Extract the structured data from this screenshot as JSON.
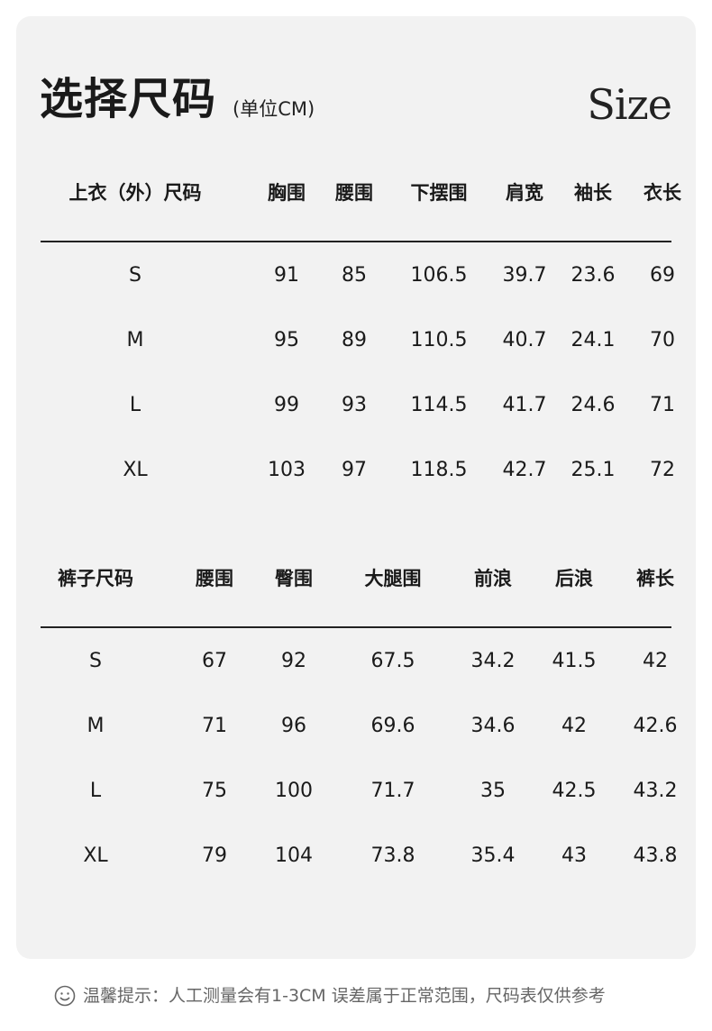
{
  "header": {
    "title": "选择尺码",
    "unit": "(单位CM)",
    "logo_text": "Size"
  },
  "top_table": {
    "headers": [
      "上衣（外）尺码",
      "胸围",
      "腰围",
      "下摆围",
      "肩宽",
      "袖长",
      "衣长"
    ],
    "rows": [
      [
        "S",
        "91",
        "85",
        "106.5",
        "39.7",
        "23.6",
        "69"
      ],
      [
        "M",
        "95",
        "89",
        "110.5",
        "40.7",
        "24.1",
        "70"
      ],
      [
        "L",
        "99",
        "93",
        "114.5",
        "41.7",
        "24.6",
        "71"
      ],
      [
        "XL",
        "103",
        "97",
        "118.5",
        "42.7",
        "25.1",
        "72"
      ]
    ]
  },
  "pants_table": {
    "headers": [
      "裤子尺码",
      "腰围",
      "臀围",
      "大腿围",
      "前浪",
      "后浪",
      "裤长"
    ],
    "rows": [
      [
        "S",
        "67",
        "92",
        "67.5",
        "34.2",
        "41.5",
        "42"
      ],
      [
        "M",
        "71",
        "96",
        "69.6",
        "34.6",
        "42",
        "42.6"
      ],
      [
        "L",
        "75",
        "100",
        "71.7",
        "35",
        "42.5",
        "43.2"
      ],
      [
        "XL",
        "79",
        "104",
        "73.8",
        "35.4",
        "43",
        "43.8"
      ]
    ]
  },
  "footer": {
    "icon": "smile-icon",
    "note": "温馨提示：人工测量会有1-3CM 误差属于正常范围，尺码表仅供参考"
  }
}
